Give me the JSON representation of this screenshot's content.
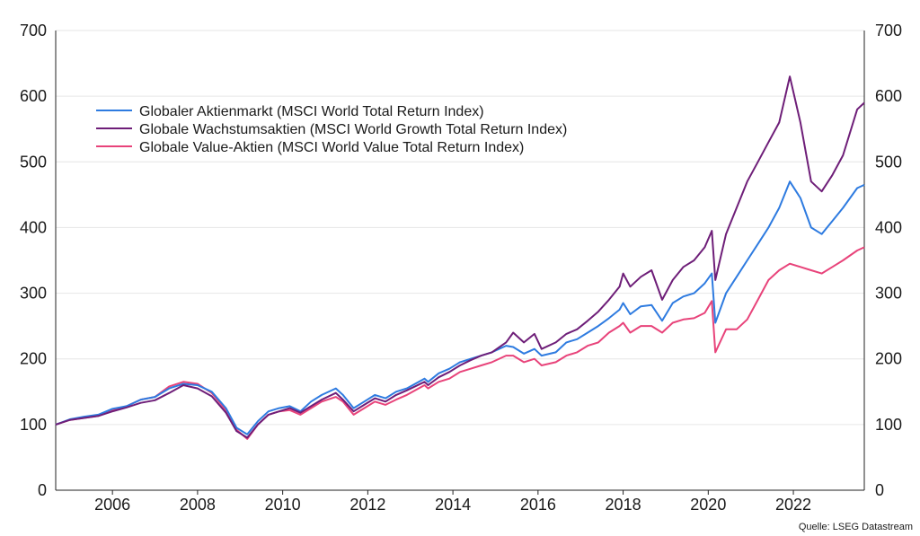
{
  "source_label": "Quelle: LSEG Datastream",
  "chart_data": {
    "type": "line",
    "x_label_years": [
      "2006",
      "2008",
      "2010",
      "2012",
      "2014",
      "2016",
      "2018",
      "2020",
      "2022"
    ],
    "xlim": [
      "2004-09",
      "2023-09"
    ],
    "ylim": [
      0,
      700
    ],
    "y_ticks": [
      0,
      100,
      200,
      300,
      400,
      500,
      600,
      700
    ],
    "grid": true,
    "legend_position": "top-left",
    "x": [
      "2004-09",
      "2005-01",
      "2005-05",
      "2005-09",
      "2006-01",
      "2006-05",
      "2006-09",
      "2007-01",
      "2007-05",
      "2007-09",
      "2008-01",
      "2008-05",
      "2008-09",
      "2008-12",
      "2009-03",
      "2009-06",
      "2009-09",
      "2009-12",
      "2010-03",
      "2010-06",
      "2010-09",
      "2010-12",
      "2011-04",
      "2011-06",
      "2011-09",
      "2011-12",
      "2012-03",
      "2012-06",
      "2012-09",
      "2012-12",
      "2013-05",
      "2013-06",
      "2013-09",
      "2013-12",
      "2014-03",
      "2014-06",
      "2014-09",
      "2014-12",
      "2015-04",
      "2015-06",
      "2015-09",
      "2015-12",
      "2016-02",
      "2016-06",
      "2016-09",
      "2016-12",
      "2017-03",
      "2017-06",
      "2017-09",
      "2017-12",
      "2018-01",
      "2018-03",
      "2018-06",
      "2018-09",
      "2018-12",
      "2019-03",
      "2019-06",
      "2019-09",
      "2019-12",
      "2020-02",
      "2020-03",
      "2020-06",
      "2020-09",
      "2020-12",
      "2021-03",
      "2021-06",
      "2021-09",
      "2021-12",
      "2022-03",
      "2022-06",
      "2022-09",
      "2022-12",
      "2023-03",
      "2023-07",
      "2023-09"
    ],
    "series": [
      {
        "name": "Globaler Aktienmarkt (MSCI World Total Return Index)",
        "color": "#2e7be0",
        "values": [
          100,
          108,
          112,
          115,
          124,
          128,
          138,
          142,
          155,
          162,
          160,
          150,
          125,
          95,
          85,
          105,
          120,
          125,
          128,
          120,
          135,
          145,
          155,
          145,
          125,
          135,
          145,
          140,
          150,
          155,
          170,
          165,
          178,
          185,
          195,
          200,
          205,
          210,
          220,
          218,
          208,
          215,
          205,
          210,
          225,
          230,
          240,
          250,
          262,
          275,
          285,
          268,
          280,
          282,
          258,
          285,
          295,
          300,
          315,
          330,
          255,
          300,
          325,
          350,
          375,
          400,
          430,
          470,
          445,
          400,
          390,
          410,
          430,
          460,
          465
        ]
      },
      {
        "name": "Globale Wachstumsaktien (MSCI World Growth Total Return Index)",
        "color": "#6e1e78",
        "values": [
          100,
          107,
          110,
          113,
          120,
          126,
          133,
          137,
          148,
          160,
          155,
          143,
          118,
          90,
          80,
          100,
          115,
          120,
          125,
          118,
          128,
          138,
          148,
          138,
          120,
          130,
          140,
          135,
          145,
          152,
          165,
          160,
          172,
          180,
          190,
          198,
          205,
          210,
          225,
          240,
          225,
          238,
          215,
          225,
          238,
          245,
          258,
          272,
          290,
          310,
          330,
          310,
          325,
          335,
          290,
          320,
          340,
          350,
          370,
          395,
          320,
          390,
          430,
          470,
          500,
          530,
          560,
          630,
          560,
          470,
          455,
          480,
          510,
          580,
          590
        ]
      },
      {
        "name": "Globale Value-Aktien (MSCI World Value Total Return Index)",
        "color": "#e8437a",
        "values": [
          100,
          107,
          110,
          113,
          122,
          128,
          138,
          142,
          158,
          165,
          162,
          148,
          122,
          92,
          78,
          100,
          115,
          120,
          122,
          115,
          125,
          135,
          142,
          135,
          115,
          125,
          135,
          130,
          138,
          145,
          160,
          155,
          165,
          170,
          180,
          185,
          190,
          195,
          205,
          205,
          195,
          200,
          190,
          195,
          205,
          210,
          220,
          225,
          240,
          250,
          255,
          240,
          250,
          250,
          240,
          255,
          260,
          262,
          270,
          288,
          210,
          245,
          245,
          260,
          290,
          320,
          335,
          345,
          340,
          335,
          330,
          340,
          350,
          365,
          370
        ]
      }
    ]
  }
}
